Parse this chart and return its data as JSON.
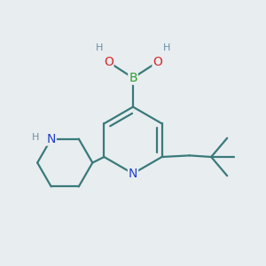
{
  "background_color": "#e8edf0",
  "bond_color": "#3a7a7a",
  "bond_width": 1.6,
  "atom_colors": {
    "B": "#2ca02c",
    "O": "#d62728",
    "N": "#1f3fcc",
    "H": "#6b8fa8",
    "C": "#3a7a7a"
  }
}
